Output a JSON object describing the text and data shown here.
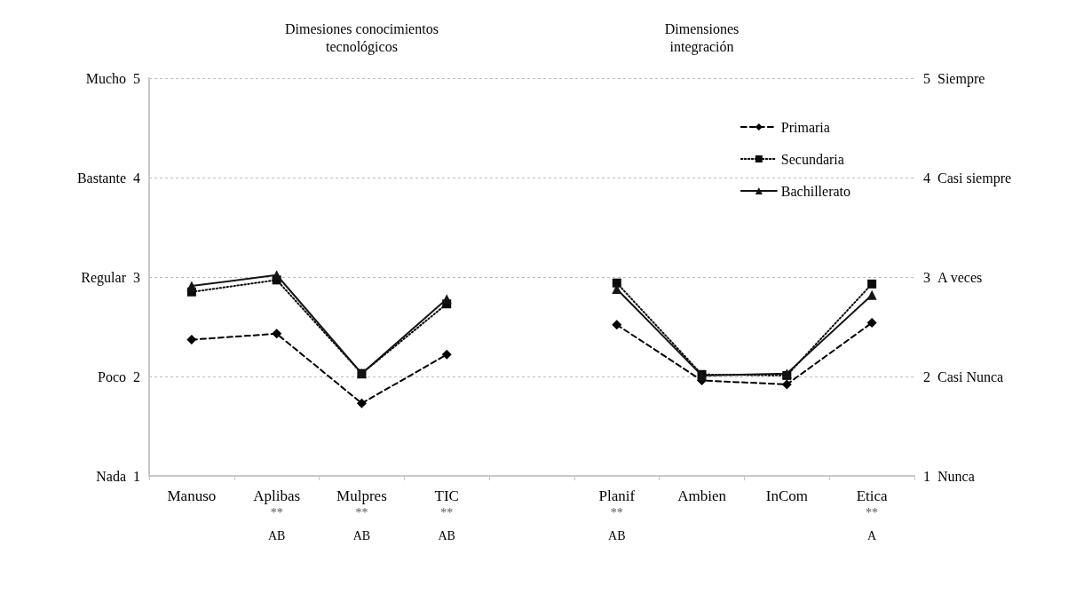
{
  "chart_data": {
    "type": "line",
    "categories": [
      "Manuso",
      "Aplibas",
      "Mulpres",
      "TIC",
      null,
      "Planif",
      "Ambien",
      "InCom",
      "Etica"
    ],
    "series": [
      {
        "name": "Primaria",
        "color": "#000000",
        "marker": "diamond",
        "line_style": "dashed",
        "values": [
          2.37,
          2.43,
          1.73,
          2.22,
          null,
          2.52,
          1.96,
          1.92,
          2.54
        ]
      },
      {
        "name": "Secundaria",
        "color": "#0a0a0a",
        "marker": "square",
        "line_style": "dotted",
        "values": [
          2.85,
          2.97,
          2.03,
          2.73,
          null,
          2.94,
          2.02,
          2.01,
          2.93
        ]
      },
      {
        "name": "Bachillerato",
        "color": "#141414",
        "marker": "triangle",
        "line_style": "solid",
        "values": [
          2.91,
          3.02,
          2.03,
          2.78,
          null,
          2.88,
          2.01,
          2.03,
          2.82
        ]
      }
    ],
    "ylim": [
      1,
      5
    ],
    "yticks": [
      1,
      2,
      3,
      4,
      5
    ],
    "y2lim": [
      1,
      5
    ],
    "y2ticks": [
      1,
      2,
      3,
      4,
      5
    ],
    "grid": "y",
    "legend": "top right",
    "annotations": [
      "Dimesiones conocimientos\ntecnológicos",
      "Dimensiones\nintegración",
      "Nada",
      "Poco",
      "Regular",
      "Bastante",
      "Mucho",
      "Nunca",
      "Casi Nunca",
      "A veces",
      "Casi siempre",
      "Siempre",
      "**",
      "AB",
      "**",
      "AB",
      "**",
      "AB",
      "**",
      "AB",
      "**",
      "A"
    ]
  }
}
